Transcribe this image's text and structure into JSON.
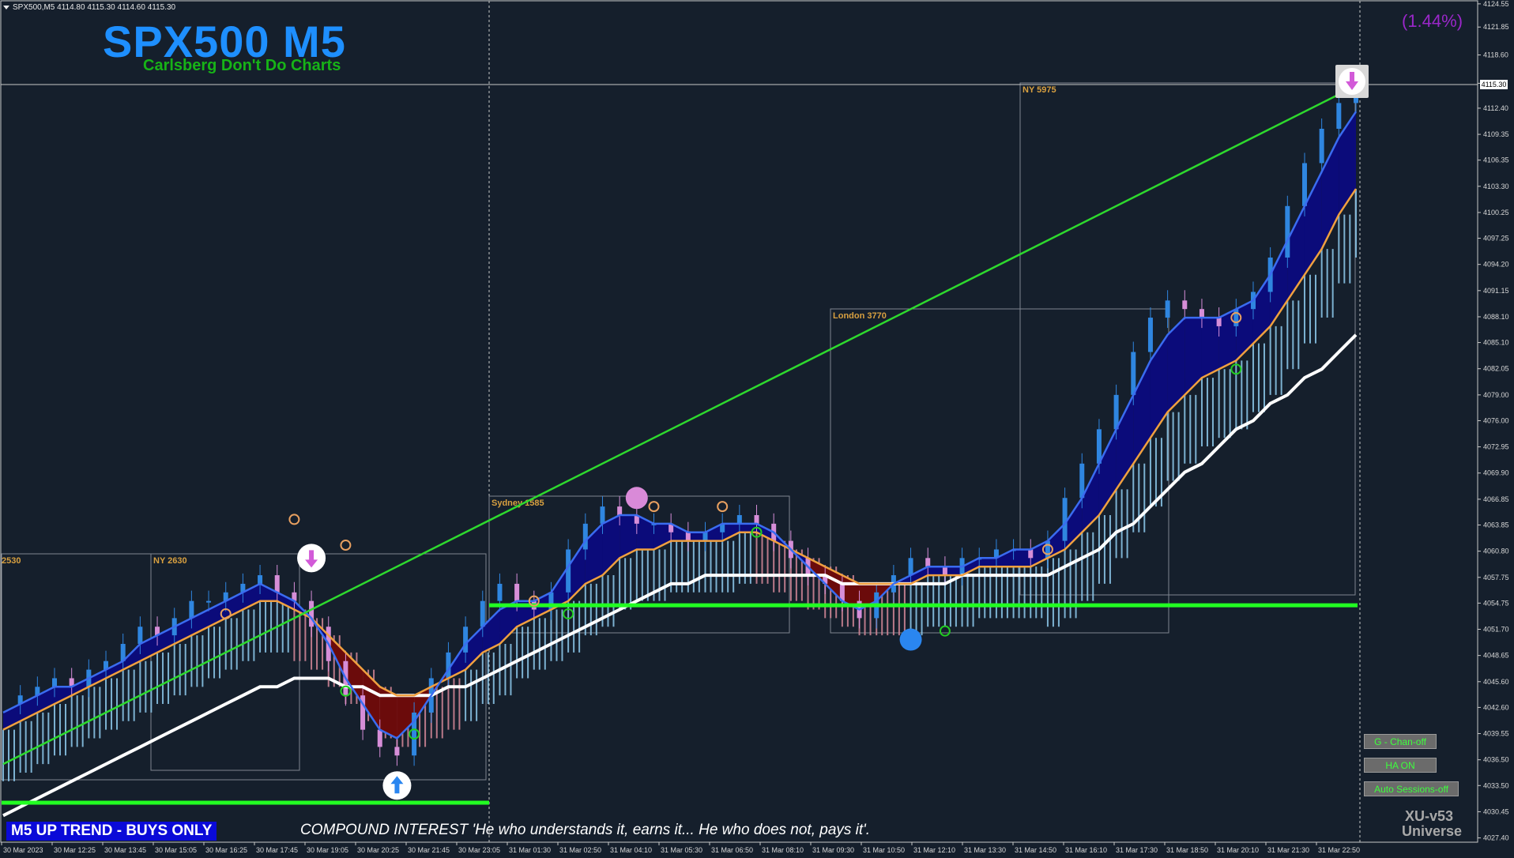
{
  "symbol_header": "SPX500,M5  4114.80 4115.30 4114.60 4115.30",
  "title": "SPX500 M5",
  "subtitle": "Carlsberg Don't Do Charts",
  "percent_change": "(1.44%)",
  "trend_banner": "M5 UP TREND - BUYS ONLY",
  "quote": "COMPOUND INTEREST  'He who understands it, earns it... He who does not, pays it'.",
  "current_price": "4115.30",
  "buttons": {
    "chan": "G - Chan-off",
    "ha": "HA ON",
    "sessions": "Auto Sessions-off"
  },
  "version": {
    "line1": "XU-v53",
    "line2": "Universe"
  },
  "sessions": [
    {
      "label": "2530",
      "color": "#d8a040"
    },
    {
      "label": "NY 2630",
      "color": "#d8a040"
    },
    {
      "label": "Sydney 1585",
      "color": "#d8a040"
    },
    {
      "label": "London 3770",
      "color": "#d8a040"
    },
    {
      "label": "NY 5975",
      "color": "#d8a040"
    }
  ],
  "chart_data": {
    "type": "line",
    "y_ticks": [
      "4124.55",
      "4121.85",
      "4118.60",
      "4115.30",
      "4112.40",
      "4109.35",
      "4106.35",
      "4103.30",
      "4100.25",
      "4097.25",
      "4094.20",
      "4091.15",
      "4088.10",
      "4085.10",
      "4082.05",
      "4079.00",
      "4076.00",
      "4072.95",
      "4069.90",
      "4066.85",
      "4063.85",
      "4060.80",
      "4057.75",
      "4054.75",
      "4051.70",
      "4048.65",
      "4045.60",
      "4042.60",
      "4039.55",
      "4036.50",
      "4033.50",
      "4030.45",
      "4027.40"
    ],
    "x_ticks": [
      "30 Mar 2023",
      "30 Mar 12:25",
      "30 Mar 13:45",
      "30 Mar 15:05",
      "30 Mar 16:25",
      "30 Mar 17:45",
      "30 Mar 19:05",
      "30 Mar 20:25",
      "30 Mar 21:45",
      "30 Mar 23:05",
      "31 Mar 01:30",
      "31 Mar 02:50",
      "31 Mar 04:10",
      "31 Mar 05:30",
      "31 Mar 06:50",
      "31 Mar 08:10",
      "31 Mar 09:30",
      "31 Mar 10:50",
      "31 Mar 12:10",
      "31 Mar 13:30",
      "31 Mar 14:50",
      "31 Mar 16:10",
      "31 Mar 17:30",
      "31 Mar 18:50",
      "31 Mar 20:10",
      "31 Mar 21:30",
      "31 Mar 22:50"
    ],
    "price_range": [
      4026.9,
      4125.0
    ],
    "close": [
      4043,
      4044,
      4045,
      4046,
      4045,
      4047,
      4048,
      4050,
      4052,
      4051,
      4053,
      4055,
      4055,
      4056,
      4057,
      4058,
      4056,
      4055,
      4052,
      4048,
      4044,
      4040,
      4038,
      4037,
      4042,
      4046,
      4049,
      4052,
      4055,
      4057,
      4055,
      4054,
      4056,
      4061,
      4064,
      4066,
      4065,
      4064,
      4064,
      4063,
      4062,
      4063,
      4064,
      4065,
      4064,
      4062,
      4060,
      4058,
      4057,
      4055,
      4053,
      4056,
      4058,
      4060,
      4059,
      4058,
      4060,
      4060,
      4061,
      4061,
      4060,
      4062,
      4067,
      4071,
      4075,
      4079,
      4084,
      4088,
      4090,
      4089,
      4088,
      4087,
      4089,
      4091,
      4095,
      4101,
      4106,
      4110,
      4113,
      4115
    ],
    "ema_fast": [
      4042,
      4043,
      4044,
      4045,
      4045,
      4046,
      4047,
      4048,
      4050,
      4051,
      4052,
      4053,
      4054,
      4055,
      4056,
      4057,
      4056,
      4055,
      4053,
      4050,
      4046,
      4043,
      4040,
      4039,
      4041,
      4044,
      4047,
      4050,
      4052,
      4054,
      4055,
      4055,
      4056,
      4059,
      4062,
      4064,
      4065,
      4065,
      4064,
      4064,
      4063,
      4063,
      4064,
      4064,
      4064,
      4063,
      4061,
      4059,
      4057,
      4055,
      4054,
      4055,
      4057,
      4058,
      4059,
      4059,
      4059,
      4060,
      4060,
      4061,
      4061,
      4062,
      4064,
      4067,
      4071,
      4075,
      4079,
      4083,
      4086,
      4088,
      4088,
      4088,
      4089,
      4090,
      4093,
      4097,
      4101,
      4105,
      4109,
      4112
    ],
    "ema_mid": [
      4040,
      4041,
      4042,
      4043,
      4044,
      4045,
      4046,
      4047,
      4048,
      4049,
      4050,
      4051,
      4052,
      4053,
      4054,
      4055,
      4055,
      4054,
      4053,
      4051,
      4049,
      4047,
      4045,
      4044,
      4044,
      4045,
      4046,
      4047,
      4049,
      4050,
      4052,
      4053,
      4054,
      4055,
      4057,
      4058,
      4060,
      4061,
      4061,
      4062,
      4062,
      4062,
      4062,
      4063,
      4063,
      4062,
      4061,
      4060,
      4059,
      4058,
      4057,
      4057,
      4057,
      4057,
      4058,
      4058,
      4058,
      4059,
      4059,
      4059,
      4059,
      4060,
      4061,
      4063,
      4065,
      4068,
      4071,
      4074,
      4077,
      4079,
      4081,
      4082,
      4083,
      4085,
      4087,
      4090,
      4093,
      4096,
      4100,
      4103
    ],
    "ema_slow": [
      4030,
      4031,
      4032,
      4033,
      4034,
      4035,
      4036,
      4037,
      4038,
      4039,
      4040,
      4041,
      4042,
      4043,
      4044,
      4045,
      4045,
      4046,
      4046,
      4046,
      4045,
      4045,
      4044,
      4044,
      4044,
      4044,
      4045,
      4045,
      4046,
      4047,
      4048,
      4049,
      4050,
      4051,
      4052,
      4053,
      4054,
      4055,
      4056,
      4057,
      4057,
      4058,
      4058,
      4058,
      4058,
      4058,
      4058,
      4058,
      4058,
      4057,
      4057,
      4057,
      4057,
      4057,
      4057,
      4057,
      4058,
      4058,
      4058,
      4058,
      4058,
      4058,
      4059,
      4060,
      4061,
      4063,
      4064,
      4066,
      4068,
      4070,
      4071,
      4073,
      4075,
      4076,
      4078,
      4079,
      4081,
      4082,
      4084,
      4086
    ],
    "trendline": [
      [
        0,
        4036
      ],
      [
        79,
        4115
      ]
    ],
    "support_level": 4054.5,
    "lower_support": 4031.5
  }
}
